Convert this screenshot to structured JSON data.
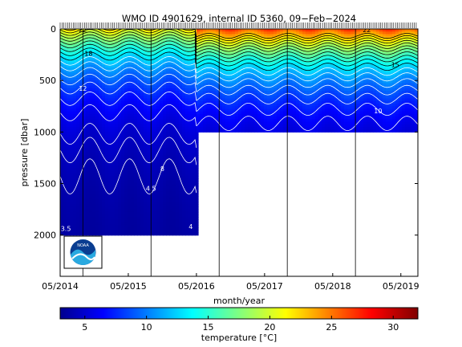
{
  "chart_data": {
    "type": "heatmap",
    "title": "WMO ID 4901629, internal ID 5360, 09−Feb−2024",
    "xlabel": "month/year",
    "ylabel": "pressure [dbar]",
    "x_tick_labels": [
      "05/2014",
      "05/2015",
      "05/2016",
      "05/2017",
      "05/2018",
      "05/2019"
    ],
    "x_tick_dates": [
      "2014-05",
      "2015-05",
      "2016-05",
      "2017-05",
      "2018-05",
      "2019-05"
    ],
    "xlim": [
      "2014-05",
      "2019-08"
    ],
    "y_ticks": [
      0,
      500,
      1000,
      1500,
      2000
    ],
    "ylim": [
      0,
      2400
    ],
    "y_reversed": true,
    "colorbar": {
      "label": "temperature [°C]",
      "ticks": [
        5,
        10,
        15,
        20,
        25,
        30
      ],
      "range": [
        3,
        32
      ],
      "colormap": "jet"
    },
    "profile_depth_coverage": [
      {
        "until": "2016-05",
        "max_pressure": 2000
      },
      {
        "until": "2019-08",
        "max_pressure": 1000
      }
    ],
    "contour_labels": [
      {
        "text": "22",
        "date": "2014-09",
        "pressure": 30
      },
      {
        "text": "18",
        "date": "2014-10",
        "pressure": 260
      },
      {
        "text": "12",
        "date": "2014-09",
        "pressure": 600
      },
      {
        "text": "8",
        "date": "2015-11",
        "pressure": 1380
      },
      {
        "text": "4.5",
        "date": "2015-09",
        "pressure": 1570
      },
      {
        "text": "4",
        "date": "2016-04",
        "pressure": 1940
      },
      {
        "text": "3.5",
        "date": "2014-06",
        "pressure": 1960
      },
      {
        "text": "22",
        "date": "2018-11",
        "pressure": 30
      },
      {
        "text": "15",
        "date": "2019-04",
        "pressure": 370
      },
      {
        "text": "10",
        "date": "2019-01",
        "pressure": 820
      }
    ],
    "grid": false
  },
  "logo": {
    "name": "noaa-logo",
    "text": "NOAA"
  }
}
